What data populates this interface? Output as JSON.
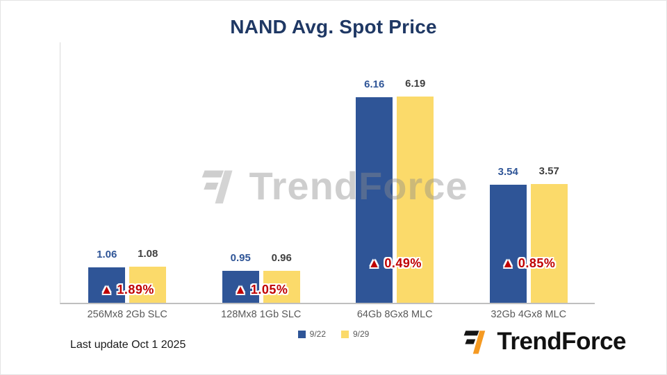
{
  "title": "NAND Avg. Spot Price",
  "chart_data": {
    "type": "bar",
    "categories": [
      "256Mx8 2Gb SLC",
      "128Mx8 1Gb SLC",
      "64Gb 8Gx8 MLC",
      "32Gb 4Gx8 MLC"
    ],
    "series": [
      {
        "name": "9/22",
        "color": "#2F5597",
        "label_color": "#2F5597",
        "values": [
          1.06,
          0.95,
          6.16,
          3.54
        ]
      },
      {
        "name": "9/29",
        "color": "#FBDA6A",
        "label_color": "#404040",
        "values": [
          1.08,
          0.96,
          6.19,
          3.57
        ]
      }
    ],
    "annotations": [
      "▲ 1.89%",
      "▲ 1.05%",
      "▲ 0.49%",
      "▲ 0.85%"
    ],
    "annotation_color": "#C00000",
    "ylim": [
      0,
      7.5
    ],
    "grid": false,
    "legend_position": "bottom"
  },
  "watermark": {
    "text": "TrendForce"
  },
  "footer": {
    "last_update": "Last update Oct 1  2025"
  },
  "logo": {
    "text": "TrendForce"
  }
}
